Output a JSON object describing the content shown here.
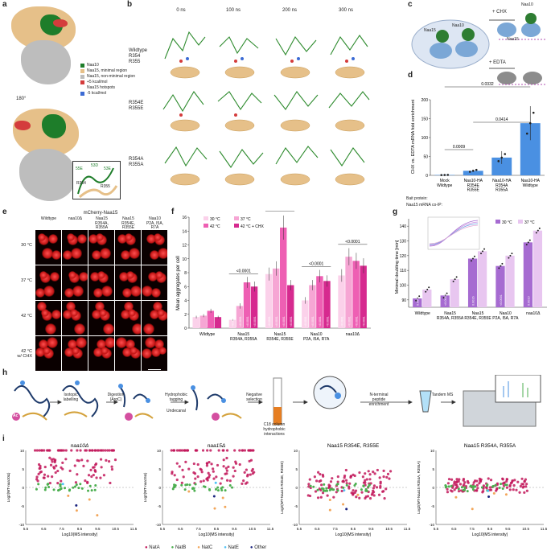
{
  "panels": {
    "a": {
      "label": "a",
      "legend": [
        "Naa10",
        "Naa15, minimal region",
        "Naa15, non-minimal region",
        "+5 kcal/mol",
        "Naa15 hotspots",
        "-5 kcal/mol"
      ],
      "legend_colors": [
        "#1e7d2a",
        "#e6c089",
        "#bdbdbd",
        "#d43c3c",
        "#ffffff",
        "#3c6bd4"
      ],
      "rotate": "180°",
      "zoom_labels": [
        "55E",
        "53D",
        "53E",
        "R354",
        "R355"
      ]
    },
    "b": {
      "label": "b",
      "times": [
        "0 ns",
        "100 ns",
        "200 ns",
        "300 ns"
      ],
      "rows": [
        "Wildtype\nR354\nR355",
        "R354E\nR355E",
        "R354A\nR355A"
      ]
    },
    "c": {
      "label": "c",
      "chx": "+ CHX",
      "edta": "+ EDTA",
      "protein_labels": [
        "Naa15",
        "Naa10",
        "Naa15",
        "Naa10"
      ]
    },
    "d": {
      "label": "d",
      "ylabel": "CHX vs. EDTA mRNA fold enrichment",
      "pvals": [
        "0.0332",
        "0.0414",
        "0.0009"
      ],
      "bait_label": "Bait protein:",
      "mrna_label": "Naa15 mRNA co-IP:",
      "groups": [
        "Mock\nWildtype",
        "Naa10-HA\nR354E\nR355E",
        "Naa10-HA\nR354A\nR355A",
        "Naa10-HA\nWildtype"
      ]
    },
    "e": {
      "label": "e",
      "title": "mCherry-Naa15",
      "columns": [
        "Wildtype",
        "naa10Δ",
        "Naa15\nR354A,\nR355A",
        "Naa15\nR354E,\nR355E",
        "Naa10\nP2A, I5A,\nR7A"
      ],
      "rows": [
        "30 °C",
        "37 °C",
        "42 °C",
        "42 °C\nw/ CHX"
      ],
      "scale": "5 μm"
    },
    "f": {
      "label": "f",
      "ylabel": "Mean aggregates per cell",
      "legend": [
        "30 °C",
        "37 °C",
        "42 °C",
        "42 °C + CHX"
      ],
      "groups": [
        "Wildtype",
        "Naa15\nR354A, R355A",
        "Naa15\nR354E, R355E",
        "Naa10\nP2A, I5A, R7A",
        "naa10Δ"
      ],
      "pvals_top": [
        "<0.0001",
        "<0.0001",
        "<0.0001",
        "<0.0001"
      ],
      "bar_p": "<0.0001"
    },
    "g": {
      "label": "g",
      "ylabel": "Minimal doubling time [min]",
      "legend": [
        "30 °C",
        "37 °C"
      ],
      "groups": [
        "Wildtype",
        "Naa15\nR354A, R355A",
        "Naa15\nR354E, R355E",
        "Naa10\nP2A, I5A, R7A",
        "naa10Δ"
      ],
      "bar_p": [
        "0.0042",
        "<0.0001",
        "0.0016",
        "<0.0001",
        "0.0010"
      ]
    },
    "h": {
      "label": "h",
      "steps": [
        "Isotopic\nlabelling",
        "Digestion\n(ArgC)",
        "Hydrophobic\ntagging",
        "Undecanal",
        "Negative\nselection",
        "N-terminal\npeptide\nenrichment",
        "Tandem MS"
      ],
      "c18": "C18 column\nhydrophobic\ninteractions",
      "ac": "Ac"
    },
    "i": {
      "label": "i",
      "titles": [
        "naa10Δ",
        "naa15Δ",
        "Naa15 R354E, R355E",
        "Naa15 R354A, R355A"
      ],
      "ylabels": [
        "Log2(WT-naa10Δ)",
        "Log2(WT-naa15Δ)",
        "Log2(WT-Naa15 R354E, R355E)",
        "Log2(WT-Naa15 R354A, R355A)"
      ],
      "xlabel": "Log10(MS intensity)",
      "legend": [
        "NatA",
        "NatB",
        "NatC",
        "NatE",
        "Other"
      ],
      "legend_colors": [
        "#c2185b",
        "#4caf50",
        "#f2a65a",
        "#4fc3f7",
        "#1a237e"
      ]
    }
  },
  "chart_data": [
    {
      "panel": "d",
      "type": "bar",
      "categories": [
        "Mock Wildtype",
        "Naa10-HA R354E R355E",
        "Naa10-HA R354A R355A",
        "Naa10-HA Wildtype"
      ],
      "values": [
        1,
        12,
        47,
        138
      ],
      "errors": [
        0.5,
        2,
        17,
        45
      ],
      "ylim": [
        0,
        200
      ],
      "yticks": [
        0,
        50,
        100,
        150,
        200
      ],
      "color": "#4a90e2"
    },
    {
      "panel": "f",
      "type": "bar",
      "categories": [
        "Wildtype",
        "Naa15 R354A, R355A",
        "Naa15 R354E, R355E",
        "Naa10 P2A, I5A, R7A",
        "naa10Δ"
      ],
      "series": [
        {
          "name": "30 °C",
          "values": [
            1.6,
            1.2,
            7.8,
            4.0,
            7.6
          ],
          "color": "#fbd1ea"
        },
        {
          "name": "37 °C",
          "values": [
            1.8,
            3.2,
            8.6,
            6.2,
            10.3
          ],
          "color": "#f6a6d4"
        },
        {
          "name": "42 °C",
          "values": [
            2.5,
            6.6,
            14.5,
            7.5,
            9.7
          ],
          "color": "#ee5fb3"
        },
        {
          "name": "42 °C + CHX",
          "values": [
            1.6,
            6.0,
            6.2,
            6.8,
            9.0
          ],
          "color": "#d62a8f"
        }
      ],
      "ylim": [
        0,
        16
      ],
      "yticks": [
        0,
        2,
        4,
        6,
        8,
        10,
        12,
        14,
        16
      ]
    },
    {
      "panel": "g",
      "type": "bar",
      "categories": [
        "Wildtype",
        "Naa15 R354A, R355A",
        "Naa15 R354E, R355E",
        "Naa10 P2A, I5A, R7A",
        "naa10Δ"
      ],
      "series": [
        {
          "name": "30 °C",
          "values": [
            91,
            93,
            118,
            113,
            129
          ],
          "color": "#a66bd1"
        },
        {
          "name": "37 °C",
          "values": [
            97,
            104,
            123,
            120,
            137
          ],
          "color": "#e8c6f0"
        }
      ],
      "ylim": [
        85,
        145
      ],
      "yticks": [
        90,
        100,
        110,
        120,
        130,
        140
      ]
    }
  ]
}
